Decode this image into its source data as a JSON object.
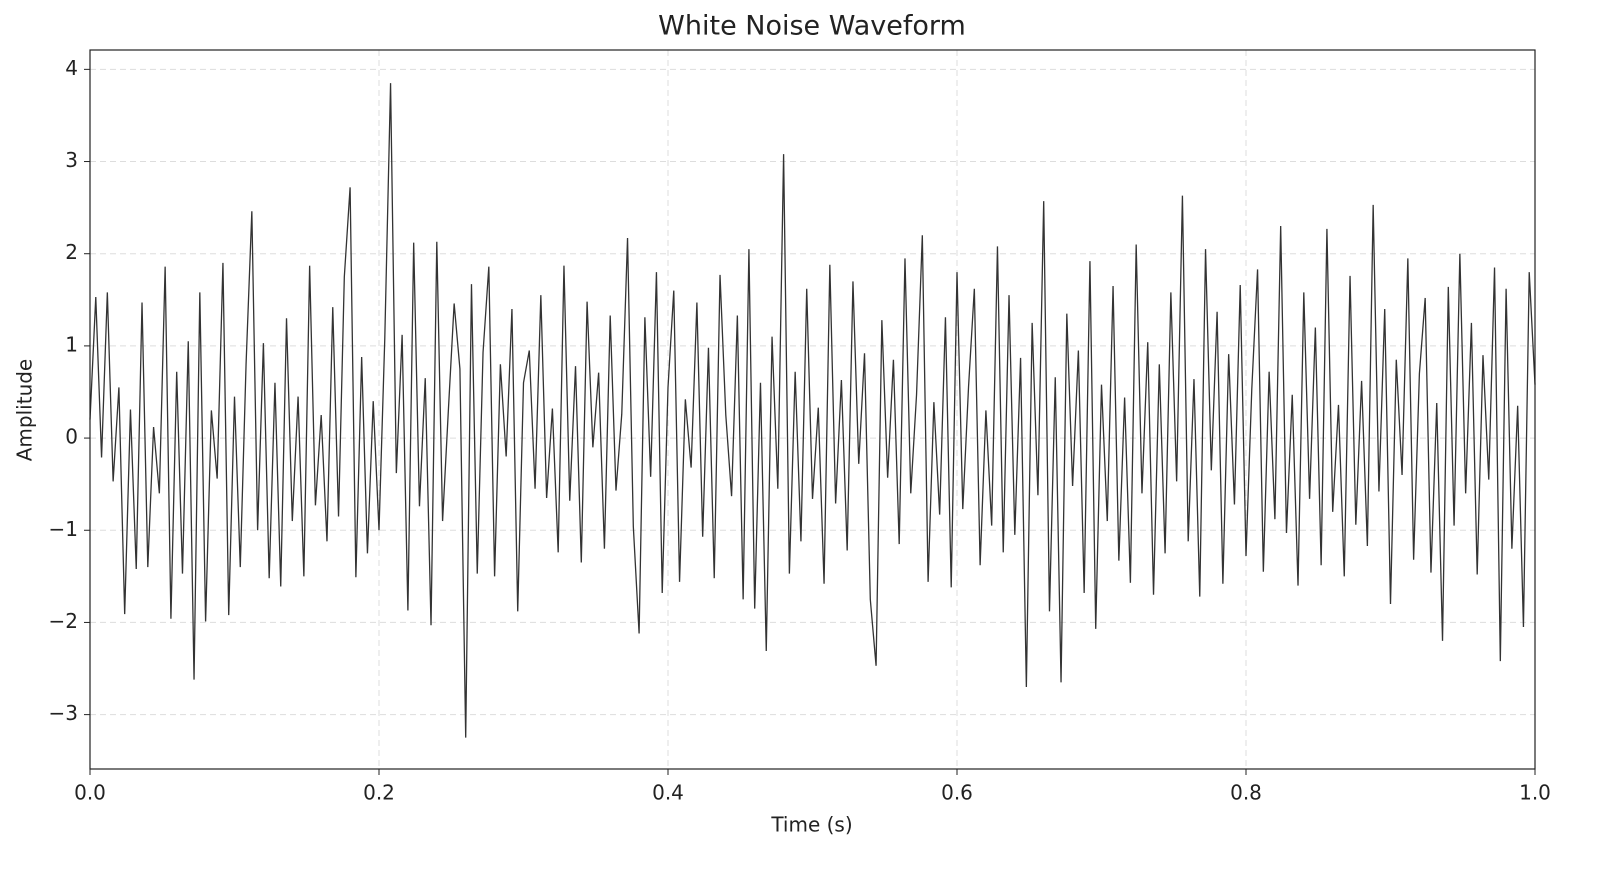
{
  "chart_data": {
    "type": "line",
    "title": "White Noise Waveform",
    "x_label": "Time (s)",
    "y_label": "Amplitude",
    "xlim": [
      0,
      1
    ],
    "ylim": [
      -3.59,
      4.21
    ],
    "xticks": [
      {
        "value": 0,
        "label": "0.0"
      },
      0.2,
      0.4,
      0.6,
      0.8,
      {
        "value": 1,
        "label": "1.0"
      }
    ],
    "yticks": [
      {
        "value": -3,
        "label": "−3"
      },
      {
        "value": -2,
        "label": "−2"
      },
      {
        "value": -1,
        "label": "−1"
      },
      0,
      1,
      2,
      3,
      4
    ],
    "grid": true,
    "x": [
      0,
      0.004,
      0.008,
      0.012,
      0.016,
      0.02,
      0.024,
      0.028,
      0.032,
      0.036,
      0.04,
      0.044,
      0.048,
      0.052,
      0.056,
      0.06,
      0.064,
      0.068,
      0.072,
      0.076,
      0.08,
      0.084,
      0.088,
      0.092,
      0.096,
      0.1,
      0.104,
      0.108,
      0.112,
      0.116,
      0.12,
      0.124,
      0.128,
      0.132,
      0.136,
      0.14,
      0.144,
      0.148,
      0.152,
      0.156,
      0.16,
      0.164,
      0.168,
      0.172,
      0.176,
      0.18,
      0.184,
      0.188,
      0.192,
      0.196,
      0.2,
      0.204,
      0.208,
      0.212,
      0.216,
      0.22,
      0.224,
      0.228,
      0.232,
      0.236,
      0.24,
      0.244,
      0.248,
      0.252,
      0.256,
      0.26,
      0.264,
      0.268,
      0.272,
      0.276,
      0.28,
      0.284,
      0.288,
      0.292,
      0.296,
      0.3,
      0.304,
      0.308,
      0.312,
      0.316,
      0.32,
      0.324,
      0.328,
      0.332,
      0.336,
      0.34,
      0.344,
      0.348,
      0.352,
      0.356,
      0.36,
      0.364,
      0.368,
      0.372,
      0.376,
      0.38,
      0.384,
      0.388,
      0.392,
      0.396,
      0.4,
      0.404,
      0.408,
      0.412,
      0.416,
      0.42,
      0.424,
      0.428,
      0.432,
      0.436,
      0.44,
      0.444,
      0.448,
      0.452,
      0.456,
      0.46,
      0.464,
      0.468,
      0.472,
      0.476,
      0.48,
      0.484,
      0.488,
      0.492,
      0.496,
      0.5,
      0.504,
      0.508,
      0.512,
      0.516,
      0.52,
      0.524,
      0.528,
      0.532,
      0.536,
      0.54,
      0.544,
      0.548,
      0.552,
      0.556,
      0.56,
      0.564,
      0.568,
      0.572,
      0.576,
      0.58,
      0.584,
      0.588,
      0.592,
      0.596,
      0.6,
      0.604,
      0.608,
      0.612,
      0.616,
      0.62,
      0.624,
      0.628,
      0.632,
      0.636,
      0.64,
      0.644,
      0.648,
      0.652,
      0.656,
      0.66,
      0.664,
      0.668,
      0.672,
      0.676,
      0.68,
      0.684,
      0.688,
      0.692,
      0.696,
      0.7,
      0.704,
      0.708,
      0.712,
      0.716,
      0.72,
      0.724,
      0.728,
      0.732,
      0.736,
      0.74,
      0.744,
      0.748,
      0.752,
      0.756,
      0.76,
      0.764,
      0.768,
      0.772,
      0.776,
      0.78,
      0.784,
      0.788,
      0.792,
      0.796,
      0.8,
      0.804,
      0.808,
      0.812,
      0.816,
      0.82,
      0.824,
      0.828,
      0.832,
      0.836,
      0.84,
      0.844,
      0.848,
      0.852,
      0.856,
      0.86,
      0.864,
      0.868,
      0.872,
      0.876,
      0.88,
      0.884,
      0.888,
      0.892,
      0.896,
      0.9,
      0.904,
      0.908,
      0.912,
      0.916,
      0.92,
      0.924,
      0.928,
      0.932,
      0.936,
      0.94,
      0.944,
      0.948,
      0.952,
      0.956,
      0.96,
      0.964,
      0.968,
      0.972,
      0.976,
      0.98,
      0.984,
      0.988,
      0.992,
      0.996,
      1
    ],
    "series": [
      {
        "color": "#333333",
        "values": [
          0.2,
          1.53,
          -0.21,
          1.58,
          -0.47,
          0.55,
          -1.91,
          0.31,
          -1.42,
          1.47,
          -1.4,
          0.12,
          -0.6,
          1.86,
          -1.96,
          0.72,
          -1.47,
          1.05,
          -2.62,
          1.58,
          -1.99,
          0.3,
          -0.44,
          1.9,
          -1.92,
          0.45,
          -1.4,
          0.8,
          2.46,
          -1.0,
          1.03,
          -1.52,
          0.6,
          -1.61,
          1.3,
          -0.9,
          0.45,
          -1.5,
          1.87,
          -0.73,
          0.25,
          -1.12,
          1.42,
          -0.85,
          1.75,
          2.72,
          -1.51,
          0.88,
          -1.25,
          0.4,
          -1.0,
          1.08,
          3.85,
          -0.38,
          1.12,
          -1.87,
          2.12,
          -0.74,
          0.65,
          -2.03,
          2.13,
          -0.9,
          0.3,
          1.46,
          0.75,
          -3.25,
          1.67,
          -1.47,
          0.93,
          1.86,
          -1.5,
          0.8,
          -0.2,
          1.4,
          -1.88,
          0.6,
          0.95,
          -0.55,
          1.55,
          -0.65,
          0.32,
          -1.24,
          1.87,
          -0.68,
          0.78,
          -1.35,
          1.48,
          -0.1,
          0.71,
          -1.2,
          1.33,
          -0.57,
          0.26,
          2.17,
          -0.96,
          -2.12,
          1.31,
          -0.42,
          1.8,
          -1.68,
          0.55,
          1.6,
          -1.56,
          0.42,
          -0.32,
          1.47,
          -1.07,
          0.98,
          -1.52,
          1.77,
          0.25,
          -0.63,
          1.33,
          -1.75,
          2.05,
          -1.85,
          0.6,
          -2.31,
          1.1,
          -0.55,
          3.08,
          -1.47,
          0.72,
          -1.12,
          1.62,
          -0.66,
          0.33,
          -1.58,
          1.88,
          -0.71,
          0.63,
          -1.22,
          1.7,
          -0.28,
          0.92,
          -1.75,
          -2.47,
          1.28,
          -0.43,
          0.85,
          -1.15,
          1.95,
          -0.6,
          0.47,
          2.2,
          -1.56,
          0.39,
          -0.83,
          1.31,
          -1.62,
          1.8,
          -0.77,
          0.56,
          1.62,
          -1.38,
          0.3,
          -0.95,
          2.08,
          -1.24,
          1.55,
          -1.05,
          0.87,
          -2.7,
          1.25,
          -0.62,
          2.57,
          -1.88,
          0.66,
          -2.65,
          1.35,
          -0.52,
          0.95,
          -1.68,
          1.92,
          -2.07,
          0.58,
          -0.9,
          1.65,
          -1.33,
          0.44,
          -1.57,
          2.1,
          -0.6,
          1.04,
          -1.7,
          0.8,
          -1.25,
          1.58,
          -0.47,
          2.63,
          -1.12,
          0.64,
          -1.72,
          2.05,
          -0.35,
          1.37,
          -1.58,
          0.91,
          -0.72,
          1.66,
          -1.28,
          0.53,
          1.83,
          -1.45,
          0.72,
          -0.88,
          2.3,
          -1.03,
          0.47,
          -1.6,
          1.58,
          -0.66,
          1.2,
          -1.38,
          2.27,
          -0.8,
          0.36,
          -1.5,
          1.76,
          -0.94,
          0.62,
          -1.17,
          2.53,
          -0.58,
          1.4,
          -1.8,
          0.85,
          -0.4,
          1.95,
          -1.32,
          0.7,
          1.52,
          -1.46,
          0.38,
          -2.2,
          1.64,
          -0.95,
          2.0,
          -0.6,
          1.25,
          -1.48,
          0.9,
          -0.45,
          1.85,
          -2.42,
          1.62,
          -1.2,
          0.35,
          -2.05,
          1.8,
          0.58
        ]
      }
    ]
  }
}
